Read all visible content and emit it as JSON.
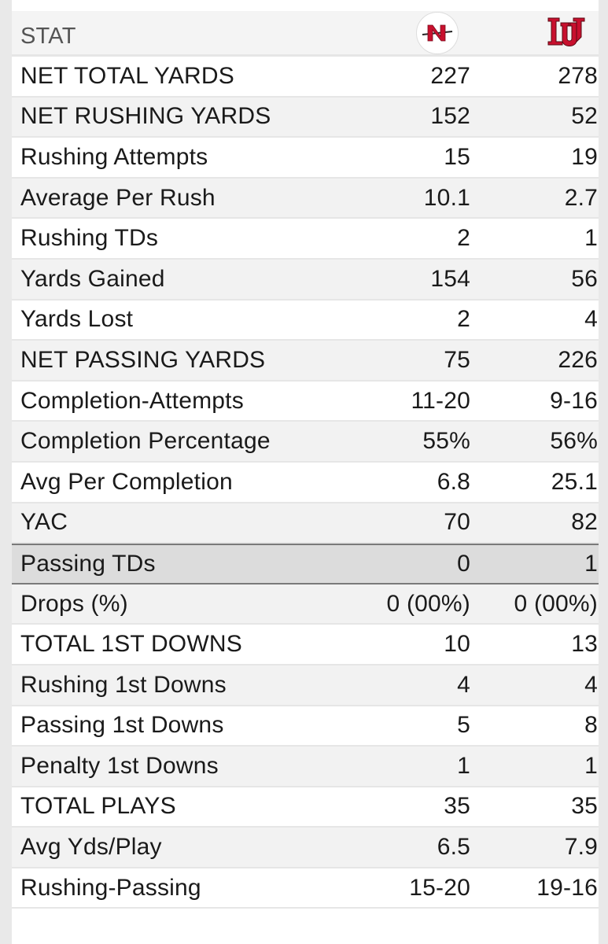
{
  "header": {
    "stat_label": "STAT",
    "team_a_logo": "N-logo (red N with spear)",
    "team_b_logo": "LU-logo (red interlocking LU)"
  },
  "colors": {
    "accent_red": "#c8102e",
    "row_alt": "#f2f2f2",
    "highlight": "#dcdcdc"
  },
  "rows": [
    {
      "label": "NET TOTAL YARDS",
      "a": "227",
      "b": "278"
    },
    {
      "label": "NET RUSHING YARDS",
      "a": "152",
      "b": "52"
    },
    {
      "label": "Rushing Attempts",
      "a": "15",
      "b": "19"
    },
    {
      "label": "Average Per Rush",
      "a": "10.1",
      "b": "2.7"
    },
    {
      "label": "Rushing TDs",
      "a": "2",
      "b": "1"
    },
    {
      "label": "Yards Gained",
      "a": "154",
      "b": "56"
    },
    {
      "label": "Yards Lost",
      "a": "2",
      "b": "4"
    },
    {
      "label": "NET PASSING YARDS",
      "a": "75",
      "b": "226"
    },
    {
      "label": "Completion-Attempts",
      "a": "11-20",
      "b": "9-16"
    },
    {
      "label": "Completion Percentage",
      "a": "55%",
      "b": "56%"
    },
    {
      "label": "Avg Per Completion",
      "a": "6.8",
      "b": "25.1"
    },
    {
      "label": "YAC",
      "a": "70",
      "b": "82"
    },
    {
      "label": "Passing TDs",
      "a": "0",
      "b": "1"
    },
    {
      "label": "Drops (%)",
      "a": "0 (00%)",
      "b": "0 (00%)"
    },
    {
      "label": "TOTAL 1ST DOWNS",
      "a": "10",
      "b": "13"
    },
    {
      "label": "Rushing 1st Downs",
      "a": "4",
      "b": "4"
    },
    {
      "label": "Passing 1st Downs",
      "a": "5",
      "b": "8"
    },
    {
      "label": "Penalty 1st Downs",
      "a": "1",
      "b": "1"
    },
    {
      "label": "TOTAL PLAYS",
      "a": "35",
      "b": "35"
    },
    {
      "label": "Avg Yds/Play",
      "a": "6.5",
      "b": "7.9"
    },
    {
      "label": "Rushing-Passing",
      "a": "15-20",
      "b": "19-16"
    }
  ]
}
